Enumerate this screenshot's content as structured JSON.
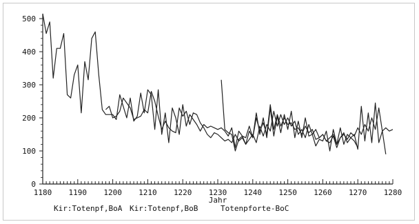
{
  "chart_data": {
    "type": "line",
    "title": "",
    "xlabel": "Jahr",
    "ylabel": "",
    "xlim": [
      1180,
      1280
    ],
    "ylim": [
      0,
      500
    ],
    "x_ticks": [
      1180,
      1190,
      1200,
      1210,
      1220,
      1230,
      1240,
      1250,
      1260,
      1270,
      1280
    ],
    "y_ticks": [
      0,
      100,
      200,
      300,
      400,
      500
    ],
    "grid": false,
    "legend_position": "bottom",
    "line_color": "#222222",
    "series": [
      {
        "name": "Kir:Totenpf,BoA",
        "points": [
          [
            1180,
            515
          ],
          [
            1181,
            455
          ],
          [
            1182,
            490
          ],
          [
            1183,
            320
          ],
          [
            1184,
            410
          ],
          [
            1185,
            410
          ],
          [
            1186,
            455
          ],
          [
            1187,
            270
          ],
          [
            1188,
            260
          ],
          [
            1189,
            330
          ],
          [
            1190,
            360
          ],
          [
            1191,
            215
          ],
          [
            1192,
            370
          ],
          [
            1193,
            315
          ],
          [
            1194,
            440
          ],
          [
            1195,
            460
          ],
          [
            1196,
            330
          ],
          [
            1197,
            225
          ],
          [
            1198,
            210
          ],
          [
            1199,
            210
          ],
          [
            1200,
            210
          ],
          [
            1201,
            195
          ],
          [
            1202,
            270
          ],
          [
            1203,
            235
          ],
          [
            1204,
            200
          ],
          [
            1205,
            260
          ],
          [
            1206,
            190
          ],
          [
            1207,
            205
          ],
          [
            1208,
            275
          ],
          [
            1209,
            215
          ],
          [
            1210,
            285
          ],
          [
            1211,
            270
          ],
          [
            1212,
            165
          ],
          [
            1213,
            285
          ],
          [
            1214,
            150
          ],
          [
            1215,
            215
          ],
          [
            1216,
            125
          ],
          [
            1217,
            230
          ],
          [
            1218,
            200
          ],
          [
            1219,
            150
          ],
          [
            1220,
            240
          ],
          [
            1221,
            175
          ],
          [
            1222,
            210
          ],
          [
            1223,
            195
          ],
          [
            1224,
            180
          ],
          [
            1225,
            160
          ],
          [
            1226,
            180
          ],
          [
            1227,
            170
          ],
          [
            1228,
            175
          ],
          [
            1229,
            170
          ],
          [
            1230,
            165
          ],
          [
            1231,
            170
          ],
          [
            1232,
            160
          ],
          [
            1233,
            145
          ],
          [
            1234,
            170
          ],
          [
            1235,
            110
          ],
          [
            1236,
            160
          ],
          [
            1237,
            145
          ],
          [
            1238,
            140
          ],
          [
            1239,
            175
          ],
          [
            1240,
            140
          ],
          [
            1241,
            215
          ],
          [
            1242,
            150
          ],
          [
            1243,
            200
          ],
          [
            1244,
            140
          ],
          [
            1245,
            230
          ],
          [
            1246,
            145
          ],
          [
            1247,
            205
          ],
          [
            1248,
            155
          ],
          [
            1249,
            210
          ],
          [
            1250,
            165
          ],
          [
            1251,
            220
          ],
          [
            1252,
            140
          ],
          [
            1253,
            190
          ],
          [
            1254,
            140
          ],
          [
            1255,
            200
          ],
          [
            1256,
            145
          ],
          [
            1257,
            150
          ],
          [
            1258,
            115
          ],
          [
            1259,
            135
          ],
          [
            1260,
            130
          ],
          [
            1261,
            160
          ],
          [
            1262,
            100
          ],
          [
            1263,
            165
          ],
          [
            1264,
            120
          ],
          [
            1265,
            170
          ],
          [
            1266,
            120
          ],
          [
            1267,
            150
          ],
          [
            1268,
            140
          ],
          [
            1269,
            150
          ],
          [
            1270,
            105
          ],
          [
            1271,
            235
          ],
          [
            1272,
            130
          ],
          [
            1273,
            215
          ],
          [
            1274,
            125
          ],
          [
            1275,
            245
          ],
          [
            1276,
            125
          ],
          [
            1277,
            160
          ],
          [
            1278,
            90
          ]
        ]
      },
      {
        "name": "Kir:Totenpf,BoB",
        "points": [
          [
            1198,
            225
          ],
          [
            1199,
            235
          ],
          [
            1200,
            200
          ],
          [
            1201,
            205
          ],
          [
            1202,
            220
          ],
          [
            1203,
            260
          ],
          [
            1204,
            245
          ],
          [
            1205,
            230
          ],
          [
            1206,
            195
          ],
          [
            1207,
            200
          ],
          [
            1208,
            205
          ],
          [
            1209,
            225
          ],
          [
            1210,
            215
          ],
          [
            1211,
            280
          ],
          [
            1212,
            250
          ],
          [
            1213,
            205
          ],
          [
            1214,
            165
          ],
          [
            1215,
            190
          ],
          [
            1216,
            170
          ],
          [
            1217,
            160
          ],
          [
            1218,
            155
          ],
          [
            1219,
            230
          ],
          [
            1220,
            205
          ],
          [
            1221,
            220
          ],
          [
            1222,
            180
          ],
          [
            1223,
            215
          ],
          [
            1224,
            210
          ],
          [
            1225,
            185
          ],
          [
            1226,
            170
          ],
          [
            1227,
            150
          ],
          [
            1228,
            140
          ],
          [
            1229,
            155
          ],
          [
            1230,
            150
          ],
          [
            1231,
            140
          ],
          [
            1232,
            130
          ],
          [
            1233,
            135
          ],
          [
            1234,
            125
          ],
          [
            1235,
            150
          ],
          [
            1236,
            130
          ],
          [
            1237,
            140
          ],
          [
            1238,
            120
          ],
          [
            1239,
            135
          ],
          [
            1240,
            150
          ],
          [
            1241,
            125
          ],
          [
            1242,
            175
          ],
          [
            1243,
            145
          ],
          [
            1244,
            180
          ],
          [
            1245,
            160
          ],
          [
            1246,
            220
          ],
          [
            1247,
            175
          ],
          [
            1248,
            210
          ],
          [
            1249,
            180
          ],
          [
            1250,
            200
          ],
          [
            1251,
            175
          ],
          [
            1252,
            190
          ],
          [
            1253,
            150
          ],
          [
            1254,
            165
          ],
          [
            1255,
            140
          ],
          [
            1256,
            180
          ],
          [
            1257,
            150
          ],
          [
            1258,
            165
          ],
          [
            1259,
            140
          ],
          [
            1260,
            150
          ],
          [
            1261,
            130
          ],
          [
            1262,
            140
          ],
          [
            1263,
            150
          ],
          [
            1264,
            120
          ],
          [
            1265,
            140
          ],
          [
            1266,
            150
          ],
          [
            1267,
            135
          ],
          [
            1268,
            155
          ],
          [
            1269,
            145
          ],
          [
            1270,
            170
          ],
          [
            1271,
            150
          ],
          [
            1272,
            180
          ],
          [
            1273,
            160
          ],
          [
            1274,
            200
          ],
          [
            1275,
            165
          ],
          [
            1276,
            230
          ],
          [
            1277,
            160
          ],
          [
            1278,
            170
          ],
          [
            1279,
            160
          ],
          [
            1280,
            165
          ]
        ]
      },
      {
        "name": "Totenpforte-BoC",
        "points": [
          [
            1231,
            315
          ],
          [
            1232,
            165
          ],
          [
            1233,
            155
          ],
          [
            1234,
            150
          ],
          [
            1235,
            100
          ],
          [
            1236,
            135
          ],
          [
            1237,
            145
          ],
          [
            1238,
            120
          ],
          [
            1239,
            160
          ],
          [
            1240,
            140
          ],
          [
            1241,
            200
          ],
          [
            1242,
            160
          ],
          [
            1243,
            185
          ],
          [
            1244,
            150
          ],
          [
            1245,
            240
          ],
          [
            1246,
            165
          ],
          [
            1247,
            210
          ],
          [
            1248,
            175
          ],
          [
            1249,
            200
          ],
          [
            1250,
            180
          ],
          [
            1251,
            185
          ],
          [
            1252,
            165
          ],
          [
            1253,
            170
          ],
          [
            1254,
            150
          ],
          [
            1255,
            175
          ],
          [
            1256,
            155
          ],
          [
            1257,
            165
          ],
          [
            1258,
            135
          ],
          [
            1259,
            140
          ],
          [
            1260,
            150
          ],
          [
            1261,
            130
          ],
          [
            1262,
            125
          ],
          [
            1263,
            145
          ],
          [
            1264,
            110
          ],
          [
            1265,
            140
          ],
          [
            1266,
            155
          ],
          [
            1267,
            125
          ],
          [
            1268,
            140
          ],
          [
            1269,
            130
          ],
          [
            1270,
            110
          ]
        ]
      }
    ]
  }
}
